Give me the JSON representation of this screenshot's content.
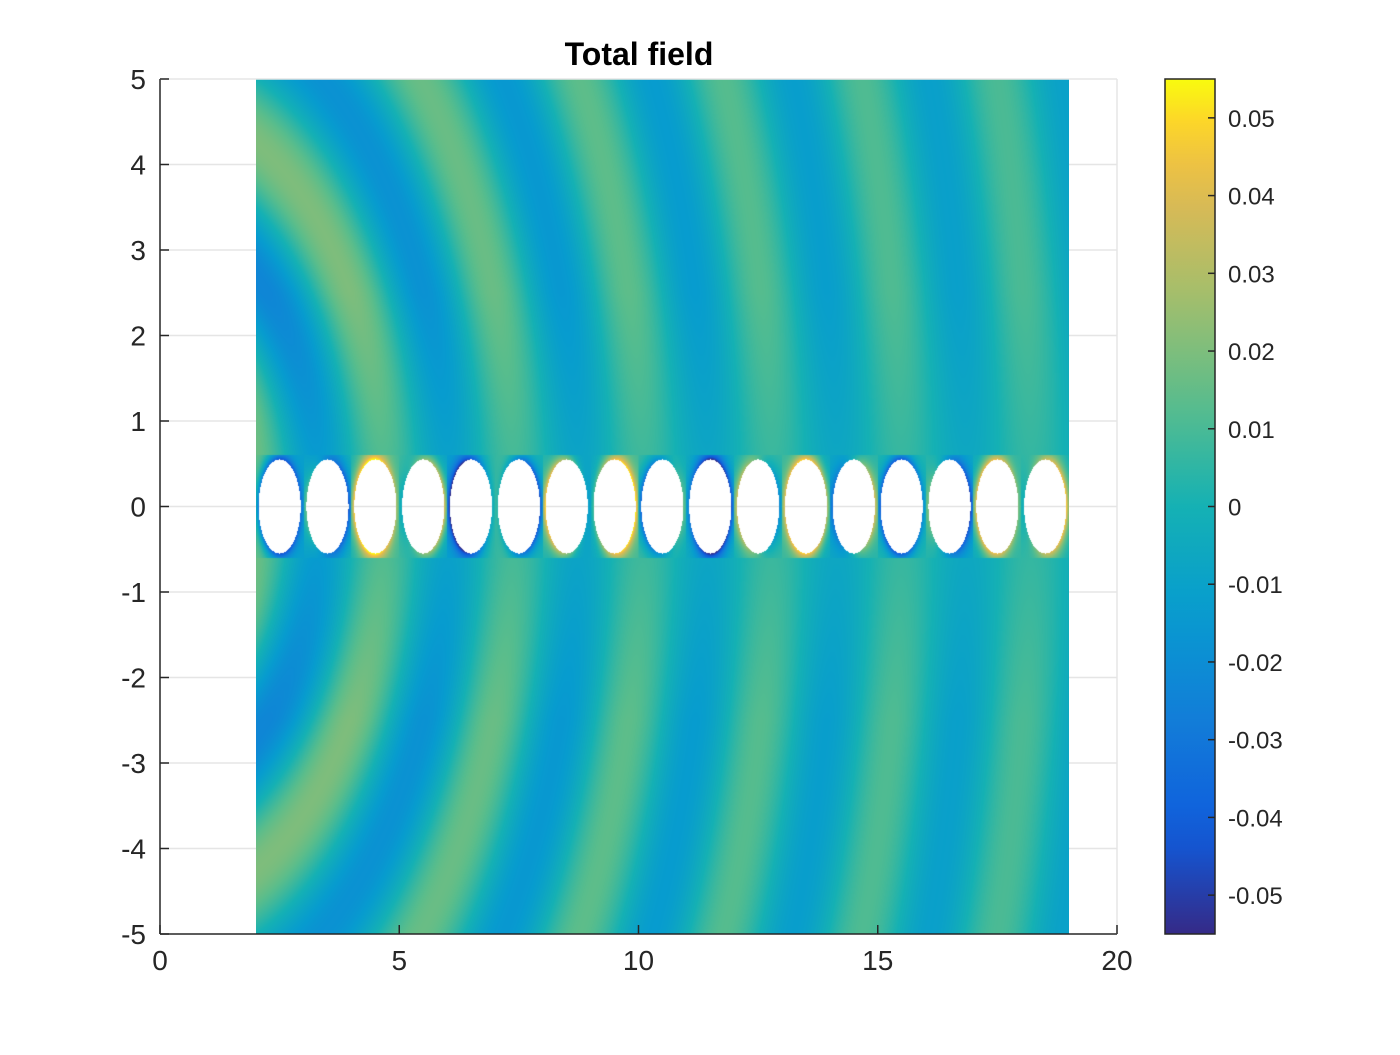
{
  "chart_data": {
    "type": "heatmap",
    "title": "Total field",
    "xlabel": "",
    "ylabel": "",
    "xlim": [
      0,
      20
    ],
    "ylim": [
      -5,
      5
    ],
    "xticks": [
      0,
      5,
      10,
      15,
      20
    ],
    "yticks": [
      5,
      4,
      3,
      2,
      1,
      0,
      -1,
      -2,
      -3,
      -4,
      -5
    ],
    "grid": true,
    "colormap": "parula",
    "clim": [
      -0.055,
      0.055
    ],
    "colorbar_ticks": [
      0.05,
      0.04,
      0.03,
      0.02,
      0.01,
      0,
      -0.01,
      -0.02,
      -0.03,
      -0.04,
      -0.05
    ],
    "colorbar_tick_labels": [
      "0.05",
      "0.04",
      "0.03",
      "0.02",
      "0.01",
      "0",
      "-0.01",
      "-0.02",
      "-0.03",
      "-0.04",
      "-0.05"
    ],
    "colorbar_position": "right",
    "field_domain": {
      "x": [
        2,
        19
      ],
      "y": [
        -5,
        5
      ]
    },
    "scatterer_strip": {
      "y": [
        -0.6,
        0.6
      ]
    },
    "holes": {
      "count": 17,
      "centers_x": [
        2.5,
        3.5,
        4.5,
        5.5,
        6.5,
        7.5,
        8.5,
        9.5,
        10.5,
        11.5,
        12.5,
        13.5,
        14.5,
        15.5,
        16.5,
        17.5,
        18.5
      ],
      "center_y": 0,
      "radius_x": 0.44,
      "radius_y": 0.55
    },
    "wave_source": {
      "x": 0,
      "y": 0
    },
    "wavelength": 2.7
  },
  "colors": {
    "axis": "#262626",
    "grid": "#e5e5e5",
    "title": "#000000",
    "background": "#ffffff"
  }
}
